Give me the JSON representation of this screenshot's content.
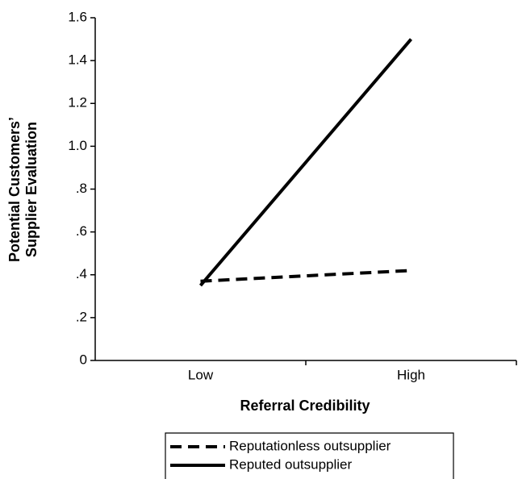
{
  "chart_data": {
    "type": "line",
    "xlabel": "Referral Credibility",
    "ylabel": [
      "Potential Customers’",
      "Supplier Evaluation"
    ],
    "categories": [
      "Low",
      "High"
    ],
    "series": [
      {
        "name": "Reputationless outsupplier",
        "color": "#000000",
        "dash": true,
        "values": [
          0.37,
          0.42
        ]
      },
      {
        "name": "Reputed outsupplier",
        "color": "#000000",
        "dash": false,
        "values": [
          0.35,
          1.5
        ]
      }
    ],
    "ylim": [
      0,
      1.6
    ],
    "yticks": [
      0,
      {
        "value": 0.2,
        "label": ".2"
      },
      {
        "value": 0.4,
        "label": ".4"
      },
      {
        "value": 0.6,
        "label": ".6"
      },
      {
        "value": 0.8,
        "label": ".8"
      },
      {
        "value": 1.0,
        "label": "1.0"
      },
      1.2,
      1.4,
      1.6
    ],
    "grid": false
  }
}
